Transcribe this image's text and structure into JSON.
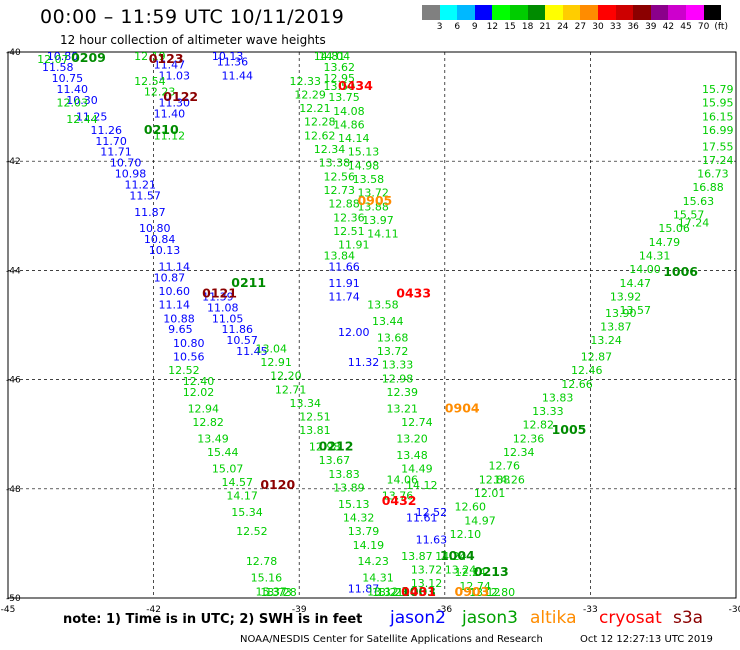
{
  "header": {
    "title": "00:00 – 11:59 UTC 10/11/2019",
    "subtitle": "12 hour collection of altimeter wave heights"
  },
  "colorbar": {
    "colors": [
      "#808080",
      "#00ffff",
      "#00b8ff",
      "#0000ff",
      "#00ff00",
      "#00cd00",
      "#008b00",
      "#ffff00",
      "#ffcd00",
      "#ff8c00",
      "#ff0000",
      "#cd0000",
      "#8b0000",
      "#8b008b",
      "#cd00cd",
      "#ff00ff",
      "#000000"
    ],
    "ticks": [
      "3",
      "6",
      "9",
      "12",
      "15",
      "18",
      "21",
      "24",
      "27",
      "30",
      "33",
      "36",
      "39",
      "42",
      "45",
      "70",
      "(ft)"
    ]
  },
  "axes": {
    "lon_labels": [
      "-45",
      "-42",
      "-39",
      "-36",
      "-33",
      "-30"
    ],
    "lat_labels": [
      "-40",
      "-42",
      "-44",
      "-46",
      "-48",
      "-50"
    ],
    "lon_range": [
      -45,
      -30
    ],
    "lat_range": [
      -50,
      -40
    ]
  },
  "tracks": [
    {
      "name": "jason2-track",
      "color": "#0000ff",
      "points": [
        [
          -44.2,
          -40.1,
          "10.80"
        ],
        [
          -44.3,
          -40.35,
          "11.58"
        ],
        [
          -44.1,
          -40.55,
          "10.75"
        ],
        [
          -44.0,
          -40.75,
          "11.40"
        ],
        [
          -43.8,
          -40.95,
          "10.30"
        ],
        [
          -43.6,
          -41.25,
          "11.25"
        ],
        [
          -43.3,
          -41.5,
          "11.26"
        ],
        [
          -43.2,
          -41.7,
          "11.70"
        ],
        [
          -43.1,
          -41.9,
          "11.71"
        ],
        [
          -42.9,
          -42.1,
          "10.70"
        ],
        [
          -42.8,
          -42.3,
          "10.98"
        ],
        [
          -42.6,
          -42.5,
          "11.21"
        ],
        [
          -42.5,
          -42.7,
          "11.57"
        ],
        [
          -42.4,
          -43.0,
          "11.87"
        ],
        [
          -42.3,
          -43.3,
          "10.80"
        ],
        [
          -42.2,
          -43.5,
          "10.84"
        ],
        [
          -42.1,
          -43.7,
          "10.13"
        ],
        [
          -41.9,
          -44.0,
          "11.14"
        ],
        [
          -42.0,
          -44.2,
          "10.87"
        ],
        [
          -41.9,
          -44.45,
          "10.60"
        ],
        [
          -41.9,
          -44.7,
          "11.14"
        ],
        [
          -41.8,
          -44.95,
          "10.88"
        ],
        [
          -41.7,
          -45.15,
          "9.65"
        ],
        [
          -41.6,
          -45.4,
          "10.80"
        ],
        [
          -41.6,
          -45.65,
          "10.56"
        ],
        [
          -42.0,
          -40.3,
          "11.47"
        ],
        [
          -41.9,
          -40.5,
          "11.03"
        ],
        [
          -41.9,
          -41.0,
          "11.30"
        ],
        [
          -42.0,
          -41.2,
          "11.40"
        ],
        [
          -41.0,
          -44.55,
          "11.39"
        ],
        [
          -40.9,
          -44.75,
          "11.08"
        ],
        [
          -40.8,
          -44.95,
          "11.05"
        ],
        [
          -40.6,
          -45.15,
          "11.86"
        ],
        [
          -40.5,
          -45.35,
          "10.57"
        ],
        [
          -40.3,
          -45.55,
          "11.45"
        ],
        [
          -40.8,
          -40.0,
          "10.13"
        ],
        [
          -40.7,
          -40.25,
          "11.36"
        ],
        [
          -40.6,
          -40.5,
          "11.44"
        ],
        [
          -38.4,
          -44.0,
          "11.66"
        ],
        [
          -38.4,
          -44.3,
          "11.91"
        ],
        [
          -38.4,
          -44.55,
          "11.74"
        ],
        [
          -38.2,
          -45.2,
          "12.00"
        ],
        [
          -38.0,
          -45.75,
          "11.32"
        ],
        [
          -36.8,
          -48.6,
          "11.61"
        ],
        [
          -36.6,
          -49.0,
          "11.63"
        ],
        [
          -38.0,
          -49.9,
          "11.87"
        ],
        [
          -36.6,
          -48.5,
          "12.52"
        ]
      ]
    },
    {
      "name": "jason3-track",
      "color": "#00cd00",
      "points": [
        [
          -44.4,
          -40.2,
          "12.07"
        ],
        [
          -44.0,
          -41.0,
          "12.03"
        ],
        [
          -43.8,
          -41.3,
          "12.44"
        ],
        [
          -42.4,
          -40.1,
          "12.19"
        ],
        [
          -42.4,
          -40.6,
          "12.54"
        ],
        [
          -42.2,
          -40.8,
          "12.23"
        ],
        [
          -42.0,
          -41.6,
          "11.12"
        ],
        [
          -41.7,
          -45.9,
          "12.52"
        ],
        [
          -41.4,
          -46.1,
          "12.40"
        ],
        [
          -41.4,
          -46.3,
          "12.02"
        ],
        [
          -41.3,
          -46.6,
          "12.94"
        ],
        [
          -41.2,
          -46.85,
          "12.82"
        ],
        [
          -41.1,
          -47.15,
          "13.49"
        ],
        [
          -40.9,
          -47.4,
          "15.44"
        ],
        [
          -40.8,
          -47.7,
          "15.07"
        ],
        [
          -40.6,
          -47.95,
          "14.57"
        ],
        [
          -40.5,
          -48.2,
          "14.17"
        ],
        [
          -40.4,
          -48.5,
          "15.34"
        ],
        [
          -40.3,
          -48.85,
          "12.52"
        ],
        [
          -40.1,
          -49.4,
          "12.78"
        ],
        [
          -40.0,
          -49.7,
          "15.16"
        ],
        [
          -39.9,
          -49.95,
          "15.37"
        ],
        [
          -39.8,
          -50.25,
          "13.73"
        ],
        [
          -39.7,
          -50.5,
          "13.28"
        ],
        [
          -39.9,
          -45.5,
          "13.04"
        ],
        [
          -39.8,
          -45.75,
          "12.91"
        ],
        [
          -39.6,
          -46.0,
          "12.20"
        ],
        [
          -39.5,
          -46.25,
          "12.71"
        ],
        [
          -39.2,
          -46.5,
          "13.34"
        ],
        [
          -39.0,
          -46.75,
          "12.51"
        ],
        [
          -39.0,
          -47.0,
          "13.81"
        ],
        [
          -38.8,
          -47.3,
          "12.98"
        ],
        [
          -38.6,
          -47.55,
          "13.67"
        ],
        [
          -38.4,
          -47.8,
          "13.83"
        ],
        [
          -38.3,
          -48.05,
          "13.89"
        ],
        [
          -38.2,
          -48.35,
          "15.13"
        ],
        [
          -38.1,
          -48.6,
          "14.32"
        ],
        [
          -38.0,
          -48.85,
          "13.79"
        ],
        [
          -37.9,
          -49.1,
          "14.19"
        ],
        [
          -37.8,
          -49.4,
          "14.23"
        ],
        [
          -37.7,
          -49.7,
          "14.31"
        ],
        [
          -37.6,
          -49.95,
          "13.12"
        ],
        [
          -37.5,
          -50.2,
          "13.21"
        ],
        [
          -37.4,
          -50.45,
          "13.28"
        ],
        [
          -38.7,
          -39.95,
          "14.81"
        ],
        [
          -38.6,
          -40.15,
          "14.04"
        ],
        [
          -38.5,
          -40.35,
          "13.62"
        ],
        [
          -38.5,
          -40.55,
          "12.95"
        ],
        [
          -39.2,
          -40.6,
          "12.33"
        ],
        [
          -39.1,
          -40.85,
          "12.29"
        ],
        [
          -39.0,
          -41.1,
          "12.21"
        ],
        [
          -38.9,
          -41.35,
          "12.28"
        ],
        [
          -38.9,
          -41.6,
          "12.62"
        ],
        [
          -38.7,
          -41.85,
          "12.34"
        ],
        [
          -38.6,
          -42.1,
          "13.38"
        ],
        [
          -38.5,
          -42.35,
          "12.56"
        ],
        [
          -38.5,
          -42.6,
          "12.73"
        ],
        [
          -38.4,
          -42.85,
          "12.88"
        ],
        [
          -38.3,
          -43.1,
          "12.36"
        ],
        [
          -38.3,
          -43.35,
          "12.51"
        ],
        [
          -38.2,
          -43.6,
          "11.91"
        ],
        [
          -38.5,
          -43.8,
          "13.84"
        ],
        [
          -38.5,
          -40.7,
          "13.50"
        ],
        [
          -38.4,
          -40.9,
          "13.75"
        ],
        [
          -38.3,
          -41.15,
          "14.08"
        ],
        [
          -38.3,
          -41.4,
          "14.86"
        ],
        [
          -38.2,
          -41.65,
          "14.14"
        ],
        [
          -38.0,
          -41.9,
          "15.13"
        ],
        [
          -38.0,
          -42.15,
          "14.98"
        ],
        [
          -37.9,
          -42.4,
          "13.58"
        ],
        [
          -37.8,
          -42.65,
          "13.72"
        ],
        [
          -37.8,
          -42.9,
          "13.88"
        ],
        [
          -37.7,
          -43.15,
          "13.97"
        ],
        [
          -37.6,
          -43.4,
          "14.11"
        ],
        [
          -37.6,
          -44.7,
          "13.58"
        ],
        [
          -37.5,
          -45.0,
          "13.44"
        ],
        [
          -37.4,
          -45.3,
          "13.68"
        ],
        [
          -37.4,
          -45.55,
          "13.72"
        ],
        [
          -37.3,
          -45.8,
          "13.33"
        ],
        [
          -37.3,
          -46.05,
          "12.98"
        ],
        [
          -37.2,
          -46.3,
          "12.39"
        ],
        [
          -37.2,
          -46.6,
          "13.21"
        ],
        [
          -36.9,
          -46.85,
          "12.74"
        ],
        [
          -37.0,
          -47.15,
          "13.20"
        ],
        [
          -37.0,
          -47.45,
          "13.48"
        ],
        [
          -36.9,
          -47.7,
          "14.49"
        ],
        [
          -36.8,
          -48.0,
          "14.12"
        ],
        [
          -37.2,
          -47.9,
          "14.06"
        ],
        [
          -37.3,
          -48.2,
          "13.76"
        ],
        [
          -36.9,
          -49.3,
          "13.87"
        ],
        [
          -36.7,
          -49.55,
          "13.72"
        ],
        [
          -36.7,
          -49.8,
          "13.12"
        ],
        [
          -35.8,
          -48.4,
          "12.60"
        ],
        [
          -35.6,
          -48.65,
          "14.97"
        ],
        [
          -35.9,
          -48.9,
          "12.10"
        ],
        [
          -35.8,
          -49.6,
          "12.24"
        ],
        [
          -35.7,
          -49.85,
          "12.74"
        ],
        [
          -35.5,
          -50.1,
          "13.12"
        ],
        [
          -35.2,
          -50.35,
          "12.80"
        ],
        [
          -35.4,
          -48.15,
          "12.01"
        ],
        [
          -35.3,
          -47.9,
          "12.88"
        ],
        [
          -35.1,
          -47.65,
          "12.76"
        ],
        [
          -34.8,
          -47.4,
          "12.34"
        ],
        [
          -34.6,
          -47.15,
          "12.36"
        ],
        [
          -34.4,
          -46.9,
          "12.82"
        ],
        [
          -34.2,
          -46.65,
          "13.33"
        ],
        [
          -34.0,
          -46.4,
          "13.83"
        ],
        [
          -33.6,
          -46.15,
          "12.66"
        ],
        [
          -33.4,
          -45.9,
          "12.46"
        ],
        [
          -33.2,
          -45.65,
          "12.87"
        ],
        [
          -33.0,
          -45.35,
          "13.24"
        ],
        [
          -32.8,
          -45.1,
          "13.87"
        ],
        [
          -32.7,
          -44.85,
          "13.90"
        ],
        [
          -32.6,
          -44.55,
          "13.92"
        ],
        [
          -32.4,
          -44.3,
          "14.47"
        ],
        [
          -32.2,
          -44.05,
          "14.00"
        ],
        [
          -32.0,
          -43.8,
          "14.31"
        ],
        [
          -31.8,
          -43.55,
          "14.79"
        ],
        [
          -31.6,
          -43.3,
          "15.06"
        ],
        [
          -31.3,
          -43.05,
          "15.57"
        ],
        [
          -31.1,
          -42.8,
          "15.63"
        ],
        [
          -30.9,
          -42.55,
          "16.88"
        ],
        [
          -30.8,
          -42.3,
          "16.73"
        ],
        [
          -30.6,
          -42.05,
          "17.24"
        ],
        [
          -30.4,
          -41.8,
          "17.55"
        ],
        [
          -30.3,
          -41.5,
          "16.99"
        ],
        [
          -30.2,
          -41.25,
          "16.15"
        ],
        [
          -30.1,
          -41.0,
          "15.95"
        ],
        [
          -30.0,
          -40.75,
          "15.79"
        ],
        [
          -31.2,
          -43.2,
          "17.24"
        ],
        [
          -32.4,
          -44.8,
          "13.57"
        ],
        [
          -35.0,
          -47.9,
          "14.26"
        ],
        [
          -36.2,
          -49.3,
          "14.24"
        ],
        [
          -36.0,
          -49.55,
          "13.24"
        ]
      ]
    }
  ],
  "pass_labels": [
    {
      "text": "0209",
      "lon": -43.7,
      "lat": -40.0,
      "color": "#008b00"
    },
    {
      "text": "0123",
      "lon": -42.1,
      "lat": -40.2,
      "color": "#8b0000"
    },
    {
      "text": "0122",
      "lon": -41.8,
      "lat": -40.9,
      "color": "#8b0000"
    },
    {
      "text": "0210",
      "lon": -42.2,
      "lat": -41.5,
      "color": "#008b00"
    },
    {
      "text": "0211",
      "lon": -40.4,
      "lat": -44.3,
      "color": "#008b00"
    },
    {
      "text": "0121",
      "lon": -41.0,
      "lat": -44.5,
      "color": "#8b0000"
    },
    {
      "text": "0120",
      "lon": -39.8,
      "lat": -48.0,
      "color": "#8b0000"
    },
    {
      "text": "0434",
      "lon": -38.2,
      "lat": -40.7,
      "color": "#ff0000"
    },
    {
      "text": "0905",
      "lon": -37.8,
      "lat": -42.8,
      "color": "#ff8c00"
    },
    {
      "text": "0433",
      "lon": -37.0,
      "lat": -44.5,
      "color": "#ff0000"
    },
    {
      "text": "0904",
      "lon": -36.0,
      "lat": -46.6,
      "color": "#ff8c00"
    },
    {
      "text": "0212",
      "lon": -38.6,
      "lat": -47.3,
      "color": "#008b00"
    },
    {
      "text": "0432",
      "lon": -37.3,
      "lat": -48.3,
      "color": "#ff0000"
    },
    {
      "text": "1004",
      "lon": -36.1,
      "lat": -49.3,
      "color": "#008b00"
    },
    {
      "text": "0213",
      "lon": -35.4,
      "lat": -49.6,
      "color": "#008b00"
    },
    {
      "text": "1003",
      "lon": -36.9,
      "lat": -50.1,
      "color": "#008b00"
    },
    {
      "text": "0431",
      "lon": -36.9,
      "lat": -50.3,
      "color": "#ff0000"
    },
    {
      "text": "0903",
      "lon": -35.8,
      "lat": -50.3,
      "color": "#ff8c00"
    },
    {
      "text": "1005",
      "lon": -33.8,
      "lat": -47.0,
      "color": "#008b00"
    },
    {
      "text": "1006",
      "lon": -31.5,
      "lat": -44.1,
      "color": "#008b00"
    }
  ],
  "footer": {
    "note": "note: 1) Time is in UTC; 2) SWH is in feet",
    "legend": [
      {
        "label": "jason2",
        "color": "#0000ff"
      },
      {
        "label": "jason3",
        "color": "#00a000"
      },
      {
        "label": "altika",
        "color": "#ff8c00"
      },
      {
        "label": "cryosat",
        "color": "#ff0000"
      },
      {
        "label": "s3a",
        "color": "#8b0000"
      }
    ],
    "credit": "NOAA/NESDIS Center for Satellite Applications and Research",
    "date": "Oct 12 12:27:13 UTC 2019"
  }
}
